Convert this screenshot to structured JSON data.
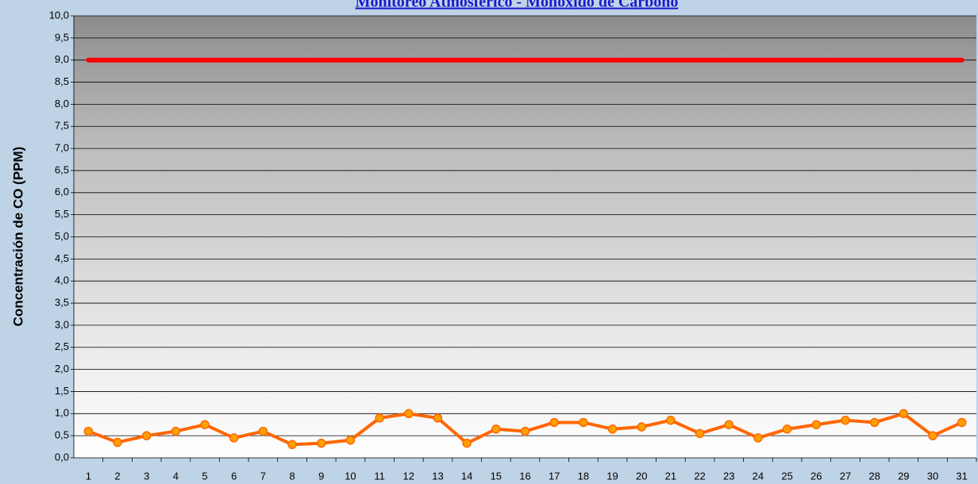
{
  "chart_data": {
    "type": "line",
    "title": "Monitoreo Atmosférico - Monóxido de Carbono",
    "y_label": "Concentración de CO (PPM)",
    "categories": [
      "1",
      "2",
      "3",
      "4",
      "5",
      "6",
      "7",
      "8",
      "9",
      "10",
      "11",
      "12",
      "13",
      "14",
      "15",
      "16",
      "17",
      "18",
      "19",
      "20",
      "21",
      "22",
      "23",
      "24",
      "25",
      "26",
      "27",
      "28",
      "29",
      "30",
      "31"
    ],
    "series": [
      {
        "color": "#ff0000",
        "values": [
          9,
          9,
          9,
          9,
          9,
          9,
          9,
          9,
          9,
          9,
          9,
          9,
          9,
          9,
          9,
          9,
          9,
          9,
          9,
          9,
          9,
          9,
          9,
          9,
          9,
          9,
          9,
          9,
          9,
          9,
          9
        ]
      },
      {
        "color": "#ff6600",
        "values": [
          0.6,
          0.35,
          0.5,
          0.6,
          0.75,
          0.45,
          0.6,
          0.3,
          0.33,
          0.4,
          0.9,
          1.0,
          0.9,
          0.33,
          0.65,
          0.6,
          0.8,
          0.8,
          0.65,
          0.7,
          0.85,
          0.55,
          0.75,
          0.45,
          0.65,
          0.75,
          0.85,
          0.8,
          1.0,
          0.5,
          0.8
        ]
      }
    ],
    "ylim": [
      0,
      10
    ],
    "yticks": [
      {
        "value": 0,
        "label": "0,0"
      },
      {
        "value": 0.5,
        "label": "0,5"
      },
      {
        "value": 1,
        "label": "1,0"
      },
      {
        "value": 1.5,
        "label": "1,5"
      },
      {
        "value": 2,
        "label": "2,0"
      },
      {
        "value": 2.5,
        "label": "2,5"
      },
      {
        "value": 3,
        "label": "3,0"
      },
      {
        "value": 3.5,
        "label": "3,5"
      },
      {
        "value": 4,
        "label": "4,0"
      },
      {
        "value": 4.5,
        "label": "4,5"
      },
      {
        "value": 5,
        "label": "5,0"
      },
      {
        "value": 5.5,
        "label": "5,5"
      },
      {
        "value": 6,
        "label": "6,0"
      },
      {
        "value": 6.5,
        "label": "6,5"
      },
      {
        "value": 7,
        "label": "7,0"
      },
      {
        "value": 7.5,
        "label": "7,5"
      },
      {
        "value": 8,
        "label": "8,0"
      },
      {
        "value": 8.5,
        "label": "8,5"
      },
      {
        "value": 9,
        "label": "9,0"
      },
      {
        "value": 9.5,
        "label": "9,5"
      },
      {
        "value": 10,
        "label": "10,0"
      }
    ],
    "grid": true
  }
}
